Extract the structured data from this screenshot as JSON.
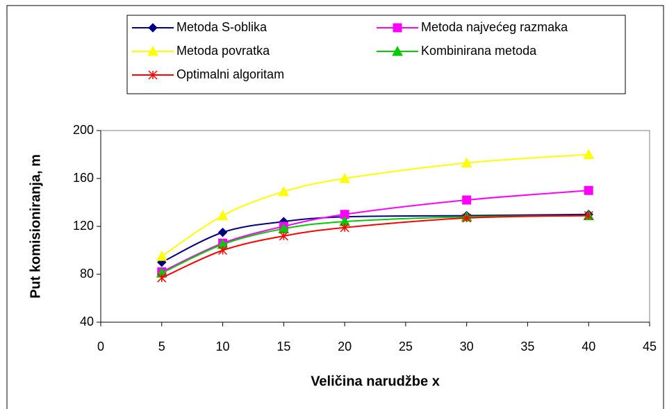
{
  "chart_data": {
    "type": "line",
    "xlabel": "Veličina narudžbe x",
    "ylabel": "Put komisioniranja, m",
    "x": [
      5,
      10,
      15,
      20,
      30,
      40
    ],
    "xlim": [
      0,
      45
    ],
    "xticks": [
      0,
      5,
      10,
      15,
      20,
      25,
      30,
      35,
      40,
      45
    ],
    "ylim": [
      40,
      200
    ],
    "yticks": [
      40,
      80,
      120,
      160,
      200
    ],
    "smooth": true,
    "series": [
      {
        "name": "Metoda S-oblika",
        "color": "#000080",
        "marker": "diamond",
        "values": [
          90,
          115,
          124,
          128,
          129,
          130
        ]
      },
      {
        "name": "Metoda najvećeg razmaka",
        "color": "#ff00ff",
        "marker": "square",
        "values": [
          82,
          106,
          120,
          130,
          142,
          150
        ]
      },
      {
        "name": "Metoda povratka",
        "color": "#ffff00",
        "marker": "triangle",
        "values": [
          95,
          129,
          149,
          160,
          173,
          180
        ]
      },
      {
        "name": "Kombinirana metoda",
        "color": "#00cc00",
        "marker": "triangle",
        "values": [
          81,
          105,
          118,
          124,
          128,
          129
        ]
      },
      {
        "name": "Optimalni algoritam",
        "color": "#ff0000",
        "marker": "star",
        "values": [
          77,
          100,
          112,
          119,
          127,
          129
        ]
      }
    ]
  }
}
